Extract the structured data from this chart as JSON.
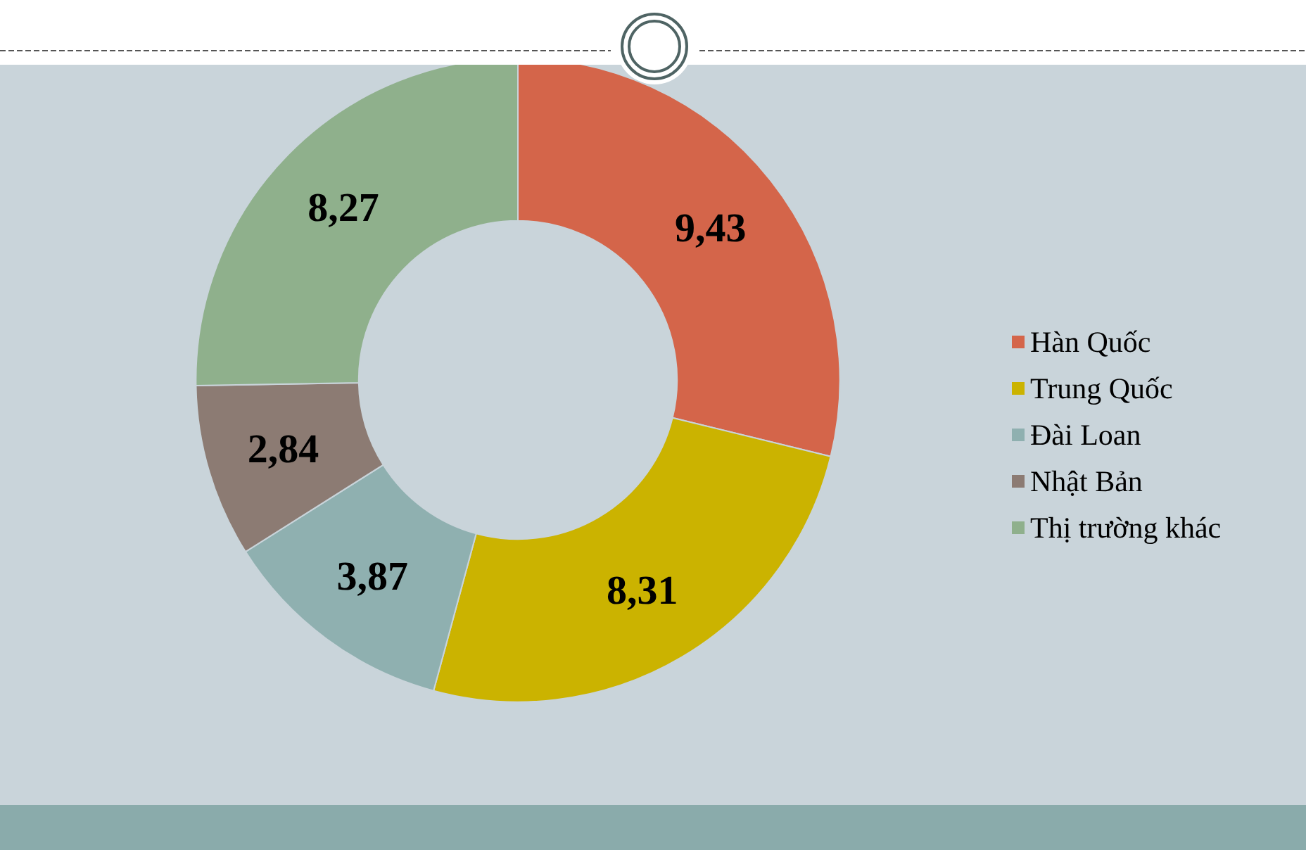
{
  "chart_data": {
    "type": "donut",
    "categories": [
      "Hàn Quốc",
      "Trung Quốc",
      "Đài Loan",
      "Nhật Bản",
      "Thị trường khác"
    ],
    "values": [
      9.43,
      8.31,
      3.87,
      2.84,
      8.27
    ],
    "value_labels": [
      "9,43",
      "8,31",
      "3,87",
      "2,84",
      "8,27"
    ],
    "colors": [
      "#d4654a",
      "#cbb300",
      "#8fb0b0",
      "#8c7b73",
      "#8fb08c"
    ],
    "legend": "right"
  }
}
